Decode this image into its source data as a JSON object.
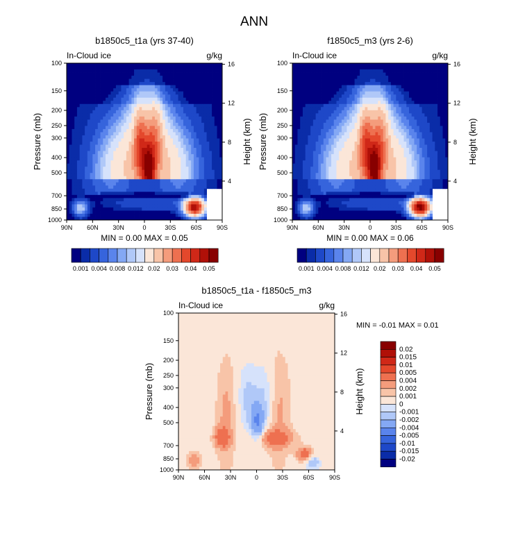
{
  "figure": {
    "title": "ANN"
  },
  "chart_data": [
    {
      "type": "heatmap",
      "title": "b1850c5_t1a (yrs 37-40)",
      "left_label": "In-Cloud ice",
      "right_label": "g/kg",
      "ylabel": "Pressure (mb)",
      "y2label": "Height (km)",
      "xticks": [
        "90N",
        "60N",
        "30N",
        "0",
        "30S",
        "60S",
        "90S"
      ],
      "yticks": [
        100,
        150,
        200,
        250,
        300,
        400,
        500,
        700,
        850,
        1000
      ],
      "y2ticks": [
        16,
        12,
        8,
        4
      ],
      "ylim": [
        1000,
        100
      ],
      "stats": "MIN =    0.00  MAX =  0.05",
      "colorbar": {
        "labels": [
          "0.001",
          "0.004",
          "0.008",
          "0.012",
          "0.02",
          "0.03",
          "0.04",
          "0.05"
        ],
        "colors": [
          "#000080",
          "#0a2ca8",
          "#1e48c8",
          "#3664dc",
          "#5a84ec",
          "#84a8f4",
          "#b0c8f8",
          "#d6e2fb",
          "#fbe6d8",
          "#f8c4a8",
          "#f49c7c",
          "#ee7050",
          "#e4482c",
          "#d02818",
          "#b01008",
          "#880000"
        ]
      },
      "features": [
        {
          "name": "Deep tropical convection core",
          "lat": -5,
          "p_top": 130,
          "p_bottom": 520,
          "peak": 0.05
        },
        {
          "name": "Southern ocean low cloud",
          "lat": -58,
          "p_top": 740,
          "p_bottom": 900,
          "peak": 0.05
        },
        {
          "name": "Northern high-latitude low cloud",
          "lat": 75,
          "p_top": 800,
          "p_bottom": 900,
          "peak": 0.012
        }
      ]
    },
    {
      "type": "heatmap",
      "title": "f1850c5_m3 (yrs 2-6)",
      "left_label": "In-Cloud ice",
      "right_label": "g/kg",
      "ylabel": "Pressure (mb)",
      "y2label": "Height (km)",
      "xticks": [
        "90N",
        "60N",
        "30N",
        "0",
        "30S",
        "60S",
        "90S"
      ],
      "yticks": [
        100,
        150,
        200,
        250,
        300,
        400,
        500,
        700,
        850,
        1000
      ],
      "y2ticks": [
        16,
        12,
        8,
        4
      ],
      "ylim": [
        1000,
        100
      ],
      "stats": "MIN =    0.00  MAX =  0.06",
      "colorbar": {
        "labels": [
          "0.001",
          "0.004",
          "0.008",
          "0.012",
          "0.02",
          "0.03",
          "0.04",
          "0.05"
        ],
        "colors": [
          "#000080",
          "#0a2ca8",
          "#1e48c8",
          "#3664dc",
          "#5a84ec",
          "#84a8f4",
          "#b0c8f8",
          "#d6e2fb",
          "#fbe6d8",
          "#f8c4a8",
          "#f49c7c",
          "#ee7050",
          "#e4482c",
          "#d02818",
          "#b01008",
          "#880000"
        ]
      }
    },
    {
      "type": "heatmap",
      "title": "b1850c5_t1a - f1850c5_m3",
      "left_label": "In-Cloud ice",
      "right_label": "g/kg",
      "ylabel": "Pressure (mb)",
      "y2label": "Height (km)",
      "xticks": [
        "90N",
        "60N",
        "30N",
        "0",
        "30S",
        "60S",
        "90S"
      ],
      "yticks": [
        100,
        150,
        200,
        250,
        300,
        400,
        500,
        700,
        850,
        1000
      ],
      "y2ticks": [
        16,
        12,
        8,
        4
      ],
      "ylim": [
        1000,
        100
      ],
      "stats": "MIN =  -0.01  MAX =   0.01",
      "colorbar": {
        "labels": [
          "0.02",
          "0.015",
          "0.01",
          "0.005",
          "0.004",
          "0.002",
          "0.001",
          "0",
          "-0.001",
          "-0.002",
          "-0.004",
          "-0.005",
          "-0.01",
          "-0.015",
          "-0.02"
        ],
        "colors": [
          "#880000",
          "#b01008",
          "#d02818",
          "#e4482c",
          "#ee7050",
          "#f49c7c",
          "#f8c4a8",
          "#fbe6d8",
          "#d6e2fb",
          "#b0c8f8",
          "#84a8f4",
          "#5a84ec",
          "#3664dc",
          "#1e48c8",
          "#0a2ca8",
          "#000080"
        ]
      }
    }
  ]
}
